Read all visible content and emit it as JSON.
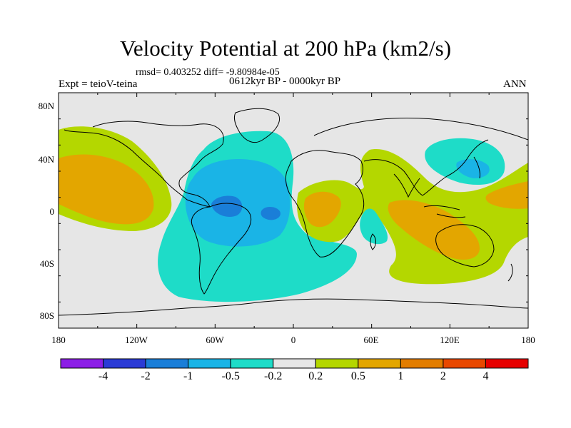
{
  "title": "Velocity Potential at 200 hPa (km2/s)",
  "stats": "rmsd= 0.403252 diff= -9.80984e-05",
  "experiment": "Expt = teioV-teina",
  "period": "0612kyr BP - 0000kyr BP",
  "season": "ANN",
  "lat_labels": [
    "80N",
    "40N",
    "0",
    "40S",
    "80S"
  ],
  "lon_labels": [
    "180",
    "120W",
    "60W",
    "0",
    "60E",
    "120E",
    "180"
  ],
  "colorbar": {
    "colors": [
      "#8c1ee6",
      "#2b3bd6",
      "#1a7ed8",
      "#1ab4e6",
      "#1edcc8",
      "#e6e6e6",
      "#b4d700",
      "#e3a600",
      "#e27d00",
      "#e84800",
      "#e60000"
    ],
    "labels": [
      "-4",
      "-2",
      "-1",
      "-0.5",
      "-0.2",
      "0.2",
      "0.5",
      "1",
      "2",
      "4"
    ]
  },
  "regions": [
    {
      "name": "pacific-east-positive",
      "level": "0.2 to 0.5",
      "color": "#b4d700"
    },
    {
      "name": "pacific-east-core",
      "level": "0.5 to 1",
      "color": "#e3a600"
    },
    {
      "name": "atlantic-negative",
      "level": "-0.5 to -0.2",
      "color": "#1edcc8"
    },
    {
      "name": "atlantic-core",
      "level": "-1 to -0.5",
      "color": "#1ab4e6"
    },
    {
      "name": "atlantic-minimum",
      "level": "-2 to -1",
      "color": "#1a7ed8"
    },
    {
      "name": "africa-indian-positive",
      "level": "0.2 to 0.5",
      "color": "#b4d700"
    },
    {
      "name": "maritime-continent-core",
      "level": "0.5 to 1",
      "color": "#e3a600"
    },
    {
      "name": "east-asia-negative",
      "level": "-0.5 to -0.2",
      "color": "#1edcc8"
    },
    {
      "name": "indian-ocean-negative",
      "level": "-0.5 to -0.2",
      "color": "#1edcc8"
    }
  ]
}
